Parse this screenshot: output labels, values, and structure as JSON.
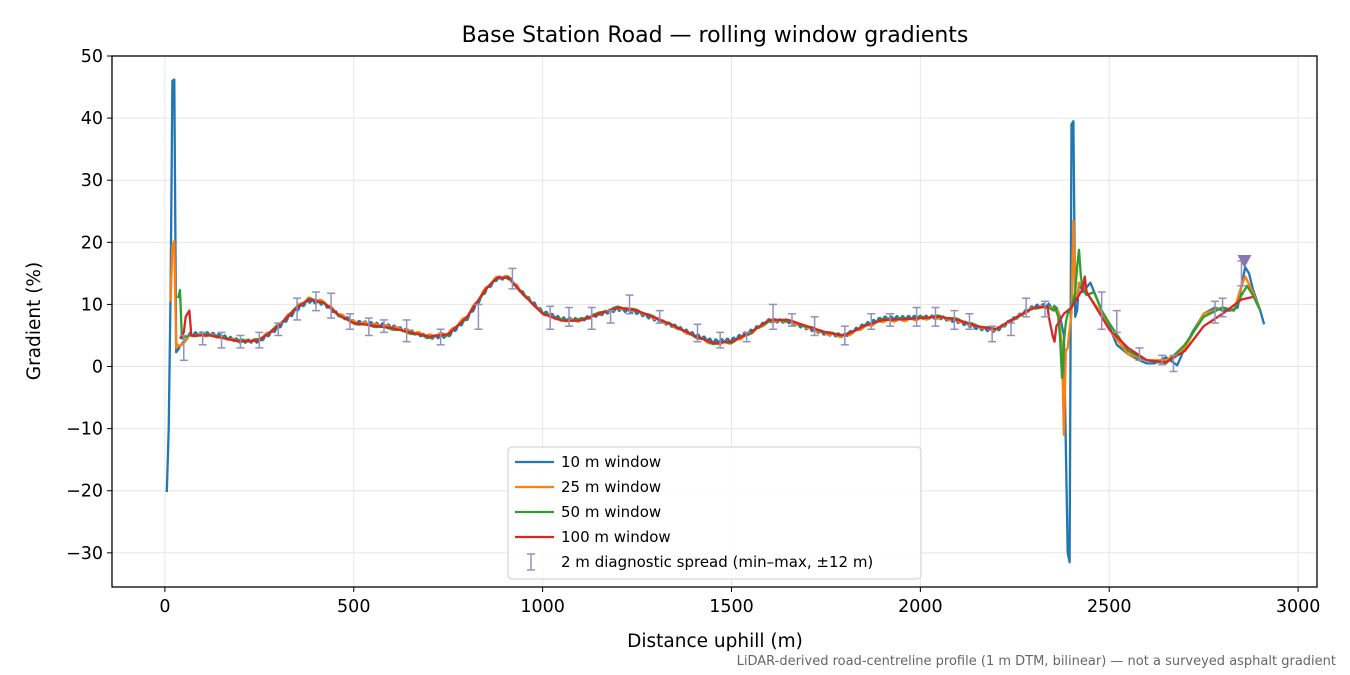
{
  "chart_data": {
    "type": "line",
    "title": "Base Station Road — rolling window gradients",
    "xlabel": "Distance uphill (m)",
    "ylabel": "Gradient (%)",
    "xlim": [
      -140,
      3050
    ],
    "ylim": [
      -35.5,
      50
    ],
    "xticks": [
      0,
      500,
      1000,
      1500,
      2000,
      2500,
      3000
    ],
    "xtick_labels": [
      "0",
      "500",
      "1000",
      "1500",
      "2000",
      "2500",
      "3000"
    ],
    "yticks": [
      -30,
      -20,
      -10,
      0,
      10,
      20,
      30,
      40,
      50
    ],
    "ytick_labels": [
      "−30",
      "−20",
      "−10",
      "0",
      "10",
      "20",
      "30",
      "40",
      "50"
    ],
    "grid": true,
    "legend_position": "lower center",
    "footnote": "LiDAR-derived road-centreline profile (1 m DTM, bilinear) — not a surveyed asphalt gradient",
    "base_profile": {
      "x": [
        50,
        80,
        120,
        160,
        200,
        250,
        300,
        350,
        380,
        420,
        460,
        500,
        550,
        600,
        650,
        700,
        750,
        800,
        850,
        880,
        910,
        950,
        1000,
        1050,
        1100,
        1150,
        1200,
        1250,
        1300,
        1350,
        1400,
        1450,
        1500,
        1550,
        1600,
        1650,
        1700,
        1750,
        1800,
        1850,
        1900,
        1950,
        2000,
        2050,
        2100,
        2150,
        2200,
        2250,
        2300,
        2340,
        2360
      ],
      "y": [
        4.8,
        5.0,
        5.0,
        4.5,
        4.0,
        4.2,
        6.5,
        9.5,
        10.8,
        10.3,
        8.3,
        7.0,
        6.6,
        6.2,
        5.5,
        4.8,
        5.2,
        8.0,
        12.5,
        14.3,
        14.3,
        11.5,
        8.5,
        7.4,
        7.4,
        8.5,
        9.5,
        9.0,
        7.8,
        6.5,
        5.0,
        3.8,
        4.0,
        5.5,
        7.5,
        7.5,
        6.5,
        5.5,
        5.0,
        6.5,
        7.5,
        7.6,
        7.8,
        8.0,
        7.5,
        6.5,
        6.0,
        7.8,
        9.5,
        9.6,
        9.0
      ]
    },
    "series": [
      {
        "name": "10 m window",
        "color": "#1f77b4",
        "x": [
          5,
          10,
          15,
          20,
          25,
          30,
          35,
          40,
          2360,
          2370,
          2380,
          2390,
          2395,
          2400,
          2405,
          2410,
          2415,
          2420,
          2430,
          2450,
          2480,
          2500,
          2520,
          2550,
          2580,
          2600,
          2620,
          2650,
          2680,
          2700,
          2720,
          2750,
          2780,
          2800,
          2820,
          2840,
          2850,
          2860,
          2870,
          2880,
          2900,
          2910
        ],
        "y": [
          -20.2,
          -10.0,
          12.0,
          46.0,
          46.2,
          2.3,
          2.7,
          3.3,
          9.5,
          8.0,
          5.0,
          -30.0,
          -31.5,
          39.0,
          39.5,
          8.0,
          9.0,
          13.5,
          12.0,
          13.5,
          9.0,
          6.5,
          3.5,
          2.0,
          1.0,
          0.5,
          0.5,
          1.5,
          0.2,
          3.0,
          5.5,
          8.5,
          9.5,
          9.0,
          9.0,
          9.5,
          13.0,
          16.0,
          15.0,
          12.5,
          9.0,
          6.8
        ]
      },
      {
        "name": "25 m window",
        "color": "#ff7f0e",
        "x": [
          15,
          20,
          25,
          30,
          35,
          40,
          45,
          2365,
          2375,
          2380,
          2385,
          2390,
          2395,
          2400,
          2405,
          2410,
          2415,
          2420,
          2430,
          2450,
          2480,
          2500,
          2550,
          2600,
          2650,
          2700,
          2750,
          2800,
          2830,
          2850,
          2860,
          2880,
          2900
        ],
        "y": [
          10.5,
          19.5,
          20.2,
          3.0,
          3.5,
          3.3,
          3.5,
          9.0,
          3.0,
          -11.0,
          2.5,
          3.0,
          6.0,
          8.5,
          23.5,
          12.0,
          11.0,
          13.5,
          13.0,
          11.0,
          8.5,
          6.0,
          2.0,
          1.0,
          1.0,
          3.0,
          8.5,
          9.5,
          9.0,
          13.0,
          14.5,
          12.0,
          9.0
        ]
      },
      {
        "name": "50 m window",
        "color": "#2ca02c",
        "x": [
          35,
          40,
          45,
          50,
          2355,
          2365,
          2370,
          2375,
          2380,
          2385,
          2390,
          2400,
          2410,
          2415,
          2420,
          2425,
          2430,
          2440,
          2460,
          2480,
          2500,
          2550,
          2600,
          2650,
          2700,
          2750,
          2800,
          2830,
          2850,
          2865,
          2880,
          2900
        ],
        "y": [
          11.0,
          12.3,
          4.5,
          4.7,
          9.8,
          8.0,
          4.5,
          -1.8,
          4.0,
          7.0,
          8.5,
          9.5,
          12.0,
          16.0,
          18.8,
          14.5,
          12.5,
          11.5,
          12.0,
          9.0,
          7.0,
          2.5,
          1.0,
          0.5,
          3.5,
          8.0,
          9.5,
          9.0,
          11.5,
          13.0,
          11.5,
          9.0
        ]
      },
      {
        "name": "100 m window",
        "color": "#d62728",
        "x": [
          40,
          50,
          55,
          60,
          65,
          70,
          2340,
          2350,
          2355,
          2360,
          2380,
          2400,
          2420,
          2430,
          2435,
          2440,
          2450,
          2480,
          2500,
          2550,
          2600,
          2650,
          2700,
          2750,
          2800,
          2850,
          2880
        ],
        "y": [
          4.5,
          5.5,
          8.0,
          8.5,
          9.0,
          5.0,
          8.0,
          5.0,
          4.0,
          6.5,
          8.5,
          9.5,
          11.5,
          12.5,
          14.5,
          12.0,
          11.0,
          8.0,
          6.0,
          3.0,
          1.0,
          0.7,
          2.5,
          6.5,
          8.5,
          10.8,
          11.2
        ]
      }
    ],
    "diagnostic": {
      "name": "2 m diagnostic spread (min–max, ±12 m)",
      "color": "#9490bd",
      "x": [
        50,
        100,
        150,
        200,
        250,
        300,
        350,
        400,
        440,
        490,
        540,
        580,
        640,
        730,
        830,
        920,
        1020,
        1070,
        1130,
        1180,
        1230,
        1310,
        1410,
        1470,
        1540,
        1610,
        1660,
        1720,
        1800,
        1870,
        1920,
        1990,
        2040,
        2090,
        2130,
        2190,
        2240,
        2280,
        2330,
        2480,
        2520,
        2580,
        2640,
        2670,
        2780,
        2800,
        2850
      ],
      "low": [
        1.0,
        3.5,
        3.0,
        3.0,
        3.0,
        5.0,
        7.5,
        9.0,
        7.8,
        6.0,
        5.0,
        5.5,
        4.0,
        3.5,
        6.0,
        12.5,
        6.0,
        6.5,
        6.0,
        7.0,
        8.5,
        7.0,
        4.0,
        3.0,
        4.0,
        6.0,
        6.5,
        5.0,
        3.5,
        6.0,
        6.5,
        6.5,
        6.5,
        6.0,
        6.0,
        4.0,
        5.0,
        8.0,
        8.0,
        6.0,
        5.5,
        1.0,
        0.3,
        -0.8,
        7.0,
        8.0,
        13.0
      ],
      "high": [
        5.0,
        5.5,
        5.5,
        5.0,
        5.5,
        7.0,
        11.0,
        12.0,
        11.8,
        8.5,
        7.8,
        7.5,
        7.5,
        6.0,
        10.0,
        15.8,
        9.7,
        9.5,
        9.5,
        9.0,
        11.5,
        9.0,
        6.8,
        5.5,
        5.5,
        10.0,
        8.5,
        8.0,
        6.5,
        8.5,
        8.5,
        9.5,
        9.5,
        9.0,
        8.5,
        6.5,
        7.0,
        11.0,
        10.5,
        12.0,
        9.0,
        3.0,
        1.8,
        1.8,
        10.5,
        11.0,
        17.0
      ]
    },
    "marker": {
      "x": 2858,
      "y": 17.0,
      "color": "#8779b0"
    },
    "legend_items": [
      {
        "label": "10 m window",
        "color": "#1f77b4",
        "kind": "line"
      },
      {
        "label": "25 m window",
        "color": "#ff7f0e",
        "kind": "line"
      },
      {
        "label": "50 m window",
        "color": "#2ca02c",
        "kind": "line"
      },
      {
        "label": "100 m window",
        "color": "#d62728",
        "kind": "line"
      },
      {
        "label": "2 m diagnostic spread (min–max, ±12 m)",
        "color": "#9490bd",
        "kind": "errorbar"
      }
    ]
  }
}
